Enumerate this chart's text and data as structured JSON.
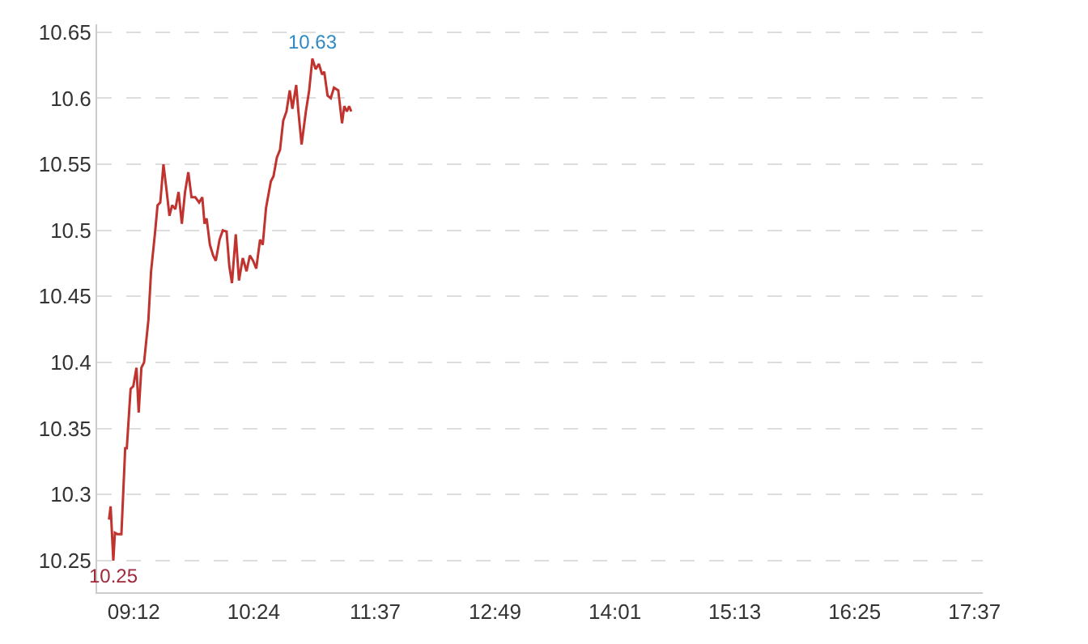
{
  "chart_data": {
    "type": "line",
    "x": [
      8.952,
      8.968,
      8.995,
      9.011,
      9.033,
      9.076,
      9.114,
      9.13,
      9.168,
      9.195,
      9.227,
      9.249,
      9.276,
      9.303,
      9.346,
      9.373,
      9.411,
      9.438,
      9.465,
      9.497,
      9.53,
      9.557,
      9.584,
      9.616,
      9.648,
      9.681,
      9.713,
      9.746,
      9.778,
      9.816,
      9.854,
      9.886,
      9.908,
      9.929,
      9.962,
      9.994,
      10.021,
      10.059,
      10.091,
      10.129,
      10.156,
      10.183,
      10.221,
      10.253,
      10.291,
      10.329,
      10.362,
      10.394,
      10.426,
      10.464,
      10.491,
      10.524,
      10.572,
      10.599,
      10.632,
      10.664,
      10.696,
      10.729,
      10.761,
      10.788,
      10.826,
      10.848,
      10.88,
      10.923,
      10.956,
      10.988,
      11.021,
      11.053,
      11.085,
      11.107,
      11.14,
      11.172,
      11.204,
      11.247,
      11.285,
      11.307,
      11.334,
      11.356,
      11.377
    ],
    "series": [
      {
        "color": "#c0332f",
        "values": [
          10.281,
          10.291,
          10.25,
          10.271,
          10.27,
          10.27,
          10.335,
          10.335,
          10.38,
          10.382,
          10.396,
          10.362,
          10.396,
          10.4,
          10.432,
          10.469,
          10.497,
          10.519,
          10.521,
          10.55,
          10.529,
          10.511,
          10.519,
          10.516,
          10.529,
          10.505,
          10.529,
          10.544,
          10.525,
          10.525,
          10.521,
          10.525,
          10.505,
          10.509,
          10.489,
          10.481,
          10.477,
          10.493,
          10.5,
          10.499,
          10.473,
          10.46,
          10.497,
          10.462,
          10.479,
          10.469,
          10.481,
          10.477,
          10.471,
          10.493,
          10.489,
          10.517,
          10.537,
          10.541,
          10.555,
          10.561,
          10.583,
          10.59,
          10.606,
          10.592,
          10.61,
          10.59,
          10.565,
          10.59,
          10.606,
          10.63,
          10.622,
          10.626,
          10.618,
          10.62,
          10.602,
          10.6,
          10.608,
          10.606,
          10.581,
          10.594,
          10.59,
          10.594,
          10.59
        ]
      }
    ],
    "xlim": [
      8.833,
      17.7
    ],
    "xticks": [
      {
        "value": 9.2,
        "label": "09:12"
      },
      {
        "value": 10.4,
        "label": "10:24"
      },
      {
        "value": 11.6167,
        "label": "11:37"
      },
      {
        "value": 12.8167,
        "label": "12:49"
      },
      {
        "value": 14.0167,
        "label": "14:01"
      },
      {
        "value": 15.2167,
        "label": "15:13"
      },
      {
        "value": 16.4167,
        "label": "16:25"
      },
      {
        "value": 17.6167,
        "label": "17:37"
      }
    ],
    "ylim": [
      10.226,
      10.656
    ],
    "yticks": [
      10.25,
      10.3,
      10.35,
      10.4,
      10.45,
      10.5,
      10.55,
      10.6,
      10.65
    ],
    "annotations": [
      {
        "text": "10.63",
        "x": 10.988,
        "y": 10.63
      },
      {
        "text": "10.25",
        "x": 8.995,
        "y": 10.25
      }
    ],
    "grid": "y",
    "marker": "none",
    "line_style": "solid"
  }
}
